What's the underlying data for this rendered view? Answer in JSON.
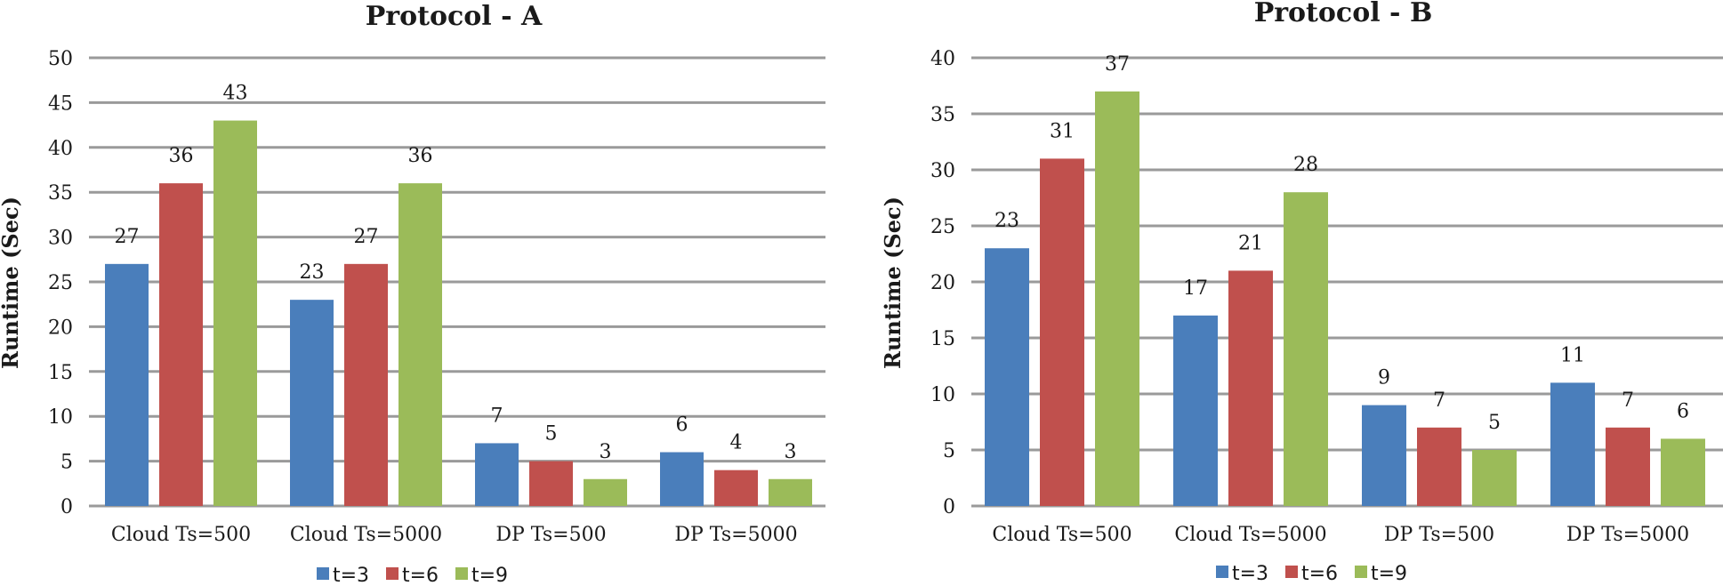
{
  "chart_data": [
    {
      "type": "bar",
      "title": "Protocol - A",
      "xlabel": "",
      "ylabel": "Runtime (Sec)",
      "ylim": [
        0,
        50
      ],
      "ytick_step": 5,
      "categories": [
        "Cloud Ts=500",
        "Cloud Ts=5000",
        "DP Ts=500",
        "DP Ts=5000"
      ],
      "series": [
        {
          "name": "t=3",
          "color": "#4a7ebb",
          "values": [
            27,
            23,
            7,
            6
          ]
        },
        {
          "name": "t=6",
          "color": "#c0504d",
          "values": [
            36,
            27,
            5,
            4
          ]
        },
        {
          "name": "t=9",
          "color": "#9bbb59",
          "values": [
            43,
            36,
            3,
            3
          ]
        }
      ],
      "grid": true,
      "legend": "bottom-center"
    },
    {
      "type": "bar",
      "title": "Protocol - B",
      "xlabel": "",
      "ylabel": "Runtime (Sec)",
      "ylim": [
        0,
        40
      ],
      "ytick_step": 5,
      "categories": [
        "Cloud Ts=500",
        "Cloud Ts=5000",
        "DP Ts=500",
        "DP Ts=5000"
      ],
      "series": [
        {
          "name": "t=3",
          "color": "#4a7ebb",
          "values": [
            23,
            17,
            9,
            11
          ]
        },
        {
          "name": "t=6",
          "color": "#c0504d",
          "values": [
            31,
            21,
            7,
            7
          ]
        },
        {
          "name": "t=9",
          "color": "#9bbb59",
          "values": [
            37,
            28,
            5,
            6
          ]
        }
      ],
      "grid": true,
      "legend": "bottom-center"
    }
  ]
}
